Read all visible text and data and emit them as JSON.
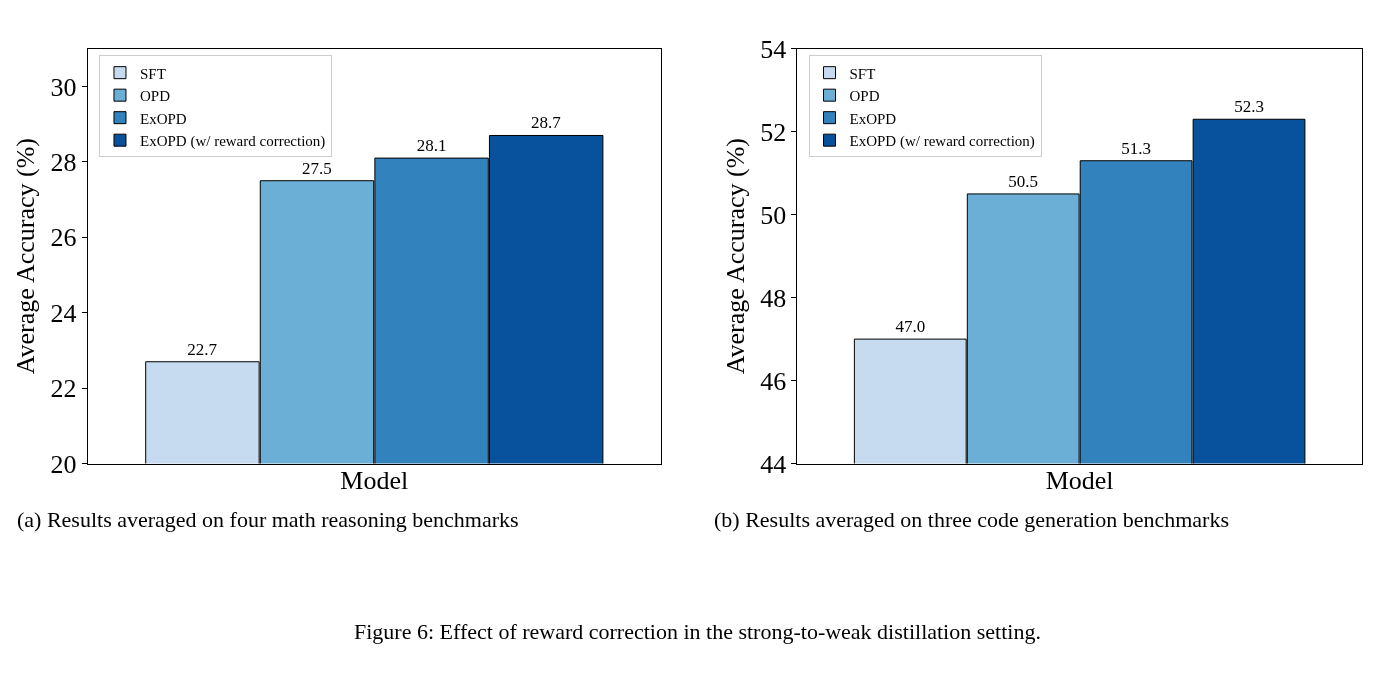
{
  "chart_data": [
    {
      "type": "bar",
      "categories": [
        null
      ],
      "xlabel": "Model",
      "ylabel": "Average Accuracy (%)",
      "ylim": [
        20,
        31
      ],
      "yticks": [
        20,
        22,
        24,
        26,
        28,
        30
      ],
      "legend": "top left",
      "grid": false,
      "series": [
        {
          "name": "SFT",
          "color": "#c6dbef",
          "values": [
            22.7
          ],
          "value_labels": [
            "22.7"
          ]
        },
        {
          "name": "OPD",
          "color": "#6baed6",
          "values": [
            27.5
          ],
          "value_labels": [
            "27.5"
          ]
        },
        {
          "name": "ExOPD",
          "color": "#3182bd",
          "values": [
            28.1
          ],
          "value_labels": [
            "28.1"
          ]
        },
        {
          "name": "ExOPD (w/ reward correction)",
          "color": "#08519c",
          "values": [
            28.7
          ],
          "value_labels": [
            "28.7"
          ]
        }
      ],
      "annotations": [
        "(a) Results averaged on four math reasoning benchmarks"
      ]
    },
    {
      "type": "bar",
      "categories": [
        null
      ],
      "xlabel": "Model",
      "ylabel": "Average Accuracy (%)",
      "ylim": [
        44,
        54
      ],
      "yticks": [
        44,
        46,
        48,
        50,
        52,
        54
      ],
      "legend": "top left",
      "grid": false,
      "series": [
        {
          "name": "SFT",
          "color": "#c6dbef",
          "values": [
            47.0
          ],
          "value_labels": [
            "47.0"
          ]
        },
        {
          "name": "OPD",
          "color": "#6baed6",
          "values": [
            50.5
          ],
          "value_labels": [
            "50.5"
          ]
        },
        {
          "name": "ExOPD",
          "color": "#3182bd",
          "values": [
            51.3
          ],
          "value_labels": [
            "51.3"
          ]
        },
        {
          "name": "ExOPD (w/ reward correction)",
          "color": "#08519c",
          "values": [
            52.3
          ],
          "value_labels": [
            "52.3"
          ]
        }
      ],
      "annotations": [
        "(b) Results averaged on three code generation benchmarks",
        "Figure 6: Effect of reward correction in the strong-to-weak distillation setting."
      ]
    }
  ]
}
